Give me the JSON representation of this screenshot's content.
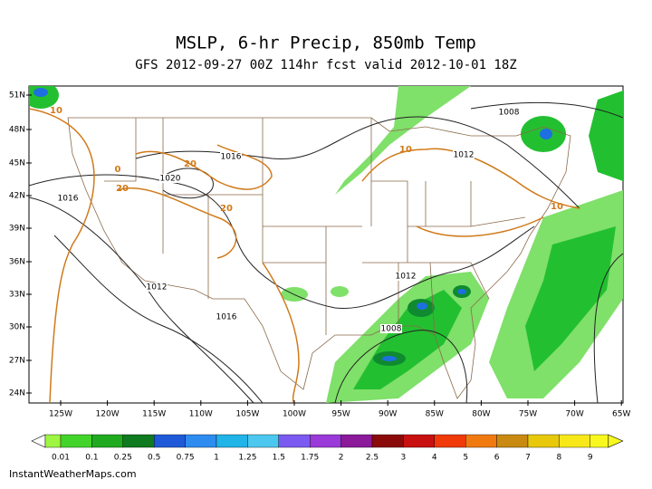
{
  "title": "MSLP, 6-hr Precip, 850mb Temp",
  "subtitle": "GFS 2012-09-27 00Z 114hr fcst valid 2012-10-01 18Z",
  "lat_labels": [
    "51N",
    "48N",
    "45N",
    "42N",
    "39N",
    "36N",
    "33N",
    "30N",
    "27N",
    "24N"
  ],
  "lon_labels": [
    "125W",
    "120W",
    "115W",
    "110W",
    "105W",
    "100W",
    "95W",
    "90W",
    "85W",
    "80W",
    "75W",
    "70W",
    "65W"
  ],
  "isobar_labels": [
    "1008",
    "1016",
    "1012",
    "1016",
    "1020",
    "1012",
    "1016",
    "1012",
    "1008"
  ],
  "temp_labels": [
    "10",
    "0",
    "20",
    "20",
    "20",
    "10",
    "10"
  ],
  "colorbar_labels": [
    "0.01",
    "0.1",
    "0.25",
    "0.5",
    "0.75",
    "1",
    "1.25",
    "1.5",
    "1.75",
    "2",
    "2.5",
    "3",
    "4",
    "5",
    "6",
    "7",
    "8",
    "9"
  ],
  "credit": "InstantWeatherMaps.com"
}
